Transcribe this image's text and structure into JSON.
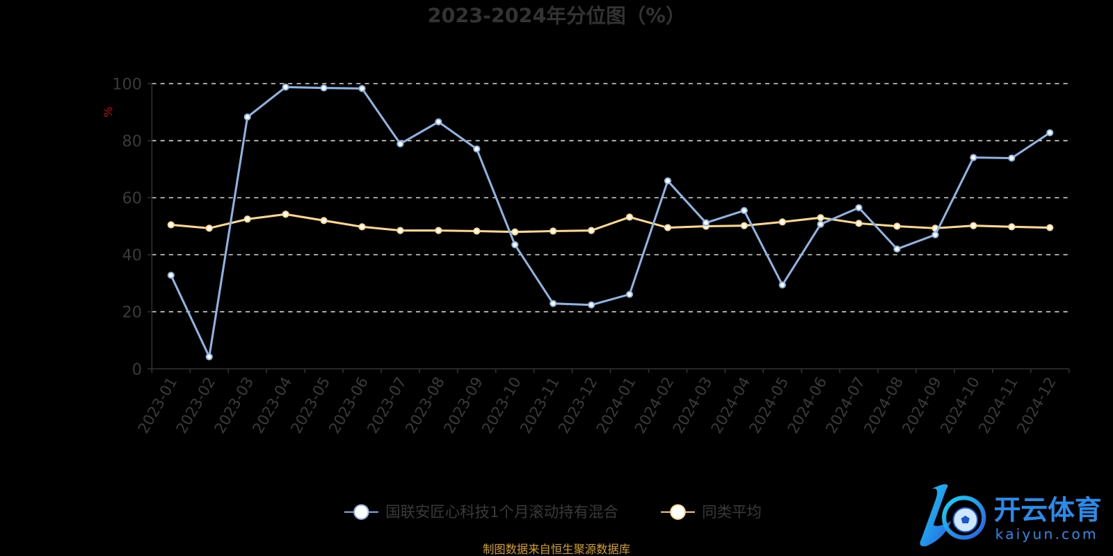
{
  "chart_data": {
    "type": "line",
    "title": "2023-2024年分位图（%）",
    "ylabel": "%",
    "xlabel": "",
    "ylim": [
      0,
      100
    ],
    "yticks": [
      0,
      20,
      40,
      60,
      80,
      100
    ],
    "grid": "horizontal-dashed",
    "legend_position": "bottom",
    "categories": [
      "2023-01",
      "2023-02",
      "2023-03",
      "2023-04",
      "2023-05",
      "2023-06",
      "2023-07",
      "2023-08",
      "2023-09",
      "2023-10",
      "2023-11",
      "2023-12",
      "2024-01",
      "2024-02",
      "2024-03",
      "2024-04",
      "2024-05",
      "2024-06",
      "2024-07",
      "2024-08",
      "2024-09",
      "2024-10",
      "2024-11",
      "2024-12"
    ],
    "series": [
      {
        "name": "国联安匠心科技1个月滚动持有混合",
        "color": "#8eb4e3",
        "values": [
          32.8,
          4.2,
          88.3,
          98.8,
          98.5,
          98.3,
          78.9,
          86.6,
          77.1,
          43.5,
          22.9,
          22.4,
          26.1,
          65.9,
          51.2,
          55.5,
          29.4,
          50.7,
          56.5,
          42.0,
          47.0,
          74.1,
          73.9,
          82.8
        ]
      },
      {
        "name": "同类平均",
        "color": "#fcd88e",
        "values": [
          50.5,
          49.3,
          52.5,
          54.2,
          52.0,
          49.8,
          48.5,
          48.5,
          48.3,
          48.0,
          48.3,
          48.5,
          53.2,
          49.5,
          50.0,
          50.2,
          51.5,
          53.0,
          51.0,
          50.0,
          49.3,
          50.2,
          49.8,
          49.5
        ]
      }
    ],
    "source_note": "制图数据来自恒生聚源数据库"
  },
  "watermark": {
    "text_cn": "开云体育",
    "text_en": "kaiyun.com"
  },
  "colors": {
    "axis": "#333333",
    "tick_text": "#3a3a3a",
    "ylabel": "#cc0000",
    "source": "#d4a017",
    "grid": "#dddddd"
  }
}
